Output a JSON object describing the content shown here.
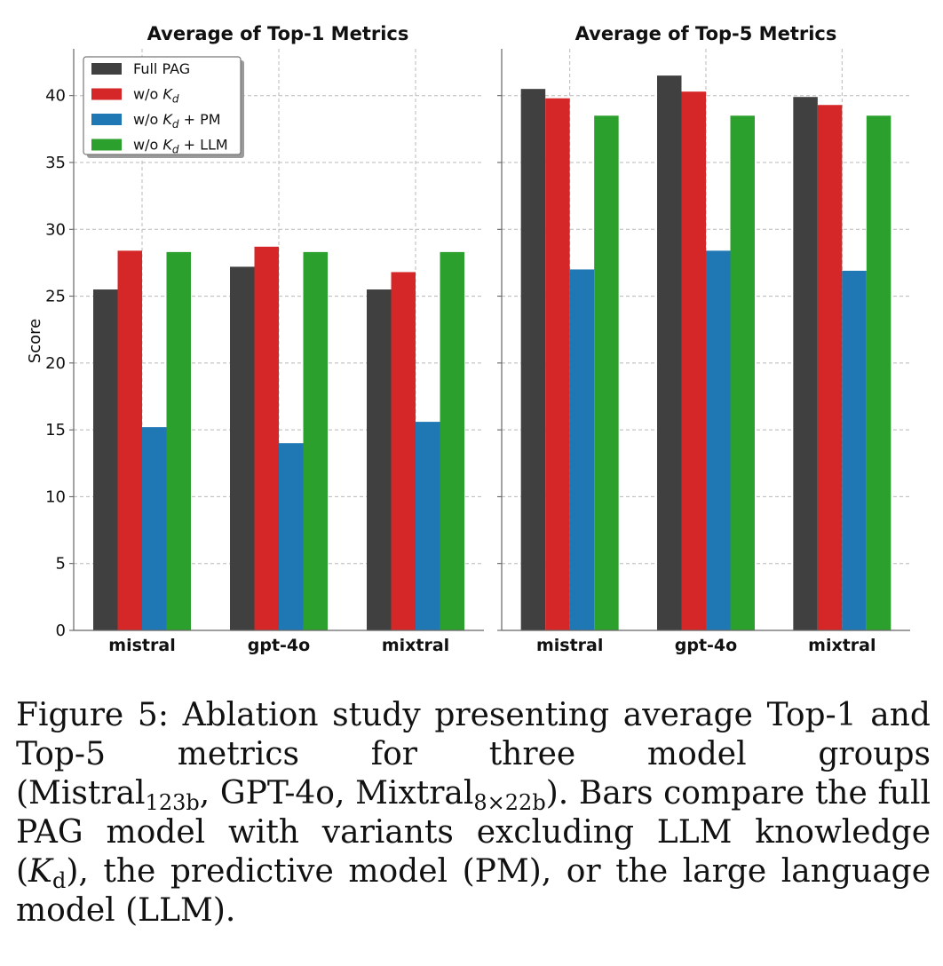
{
  "chart_data": [
    {
      "type": "bar",
      "title": "Average of Top-1 Metrics",
      "ylabel": "Score",
      "xlabel": "",
      "ylim": [
        0,
        43.5
      ],
      "yticks": [
        0,
        5,
        10,
        15,
        20,
        25,
        30,
        35,
        40
      ],
      "grid": true,
      "legend_position": "top-left",
      "categories": [
        "mistral",
        "gpt-4o",
        "mixtral"
      ],
      "series": [
        {
          "name": "Full PAG",
          "values": [
            25.5,
            27.2,
            25.5
          ]
        },
        {
          "name": "w/o K_d",
          "values": [
            28.4,
            28.7,
            26.8
          ]
        },
        {
          "name": "w/o K_d + PM",
          "values": [
            15.2,
            14.0,
            15.6
          ]
        },
        {
          "name": "w/o K_d + LLM",
          "values": [
            28.3,
            28.3,
            28.3
          ]
        }
      ]
    },
    {
      "type": "bar",
      "title": "Average of Top-5 Metrics",
      "ylabel": "",
      "xlabel": "",
      "ylim": [
        0,
        43.5
      ],
      "yticks": [
        0,
        5,
        10,
        15,
        20,
        25,
        30,
        35,
        40
      ],
      "grid": true,
      "categories": [
        "mistral",
        "gpt-4o",
        "mixtral"
      ],
      "series": [
        {
          "name": "Full PAG",
          "values": [
            40.5,
            41.5,
            39.9
          ]
        },
        {
          "name": "w/o K_d",
          "values": [
            39.8,
            40.3,
            39.3
          ]
        },
        {
          "name": "w/o K_d + PM",
          "values": [
            27.0,
            28.4,
            26.9
          ]
        },
        {
          "name": "w/o K_d + LLM",
          "values": [
            38.5,
            38.5,
            38.5
          ]
        }
      ]
    }
  ],
  "legend": [
    {
      "prefix": "Full PAG",
      "subject": "",
      "sub": "",
      "suffix": "",
      "color": "#404040"
    },
    {
      "prefix": "w/o ",
      "subject": "K",
      "sub": "d",
      "suffix": "",
      "color": "#d62728"
    },
    {
      "prefix": "w/o ",
      "subject": "K",
      "sub": "d",
      "suffix": " + PM",
      "color": "#1f77b4"
    },
    {
      "prefix": "w/o ",
      "subject": "K",
      "sub": "d",
      "suffix": " + LLM",
      "color": "#2ca02c"
    }
  ],
  "caption": {
    "label": "Figure 5:",
    "text_1": "Ablation study presenting average Top-1 and Top-5 metrics for three model groups (Mistral",
    "sub_1": "123b",
    "text_2": ", GPT-4o, Mixtral",
    "sub_2": "8×22b",
    "text_3": "). Bars compare the full PAG model with variants excluding LLM knowledge (",
    "k_symbol": "K",
    "k_sub": "d",
    "text_4": "), the predictive model (PM), or the large language model (LLM)."
  }
}
